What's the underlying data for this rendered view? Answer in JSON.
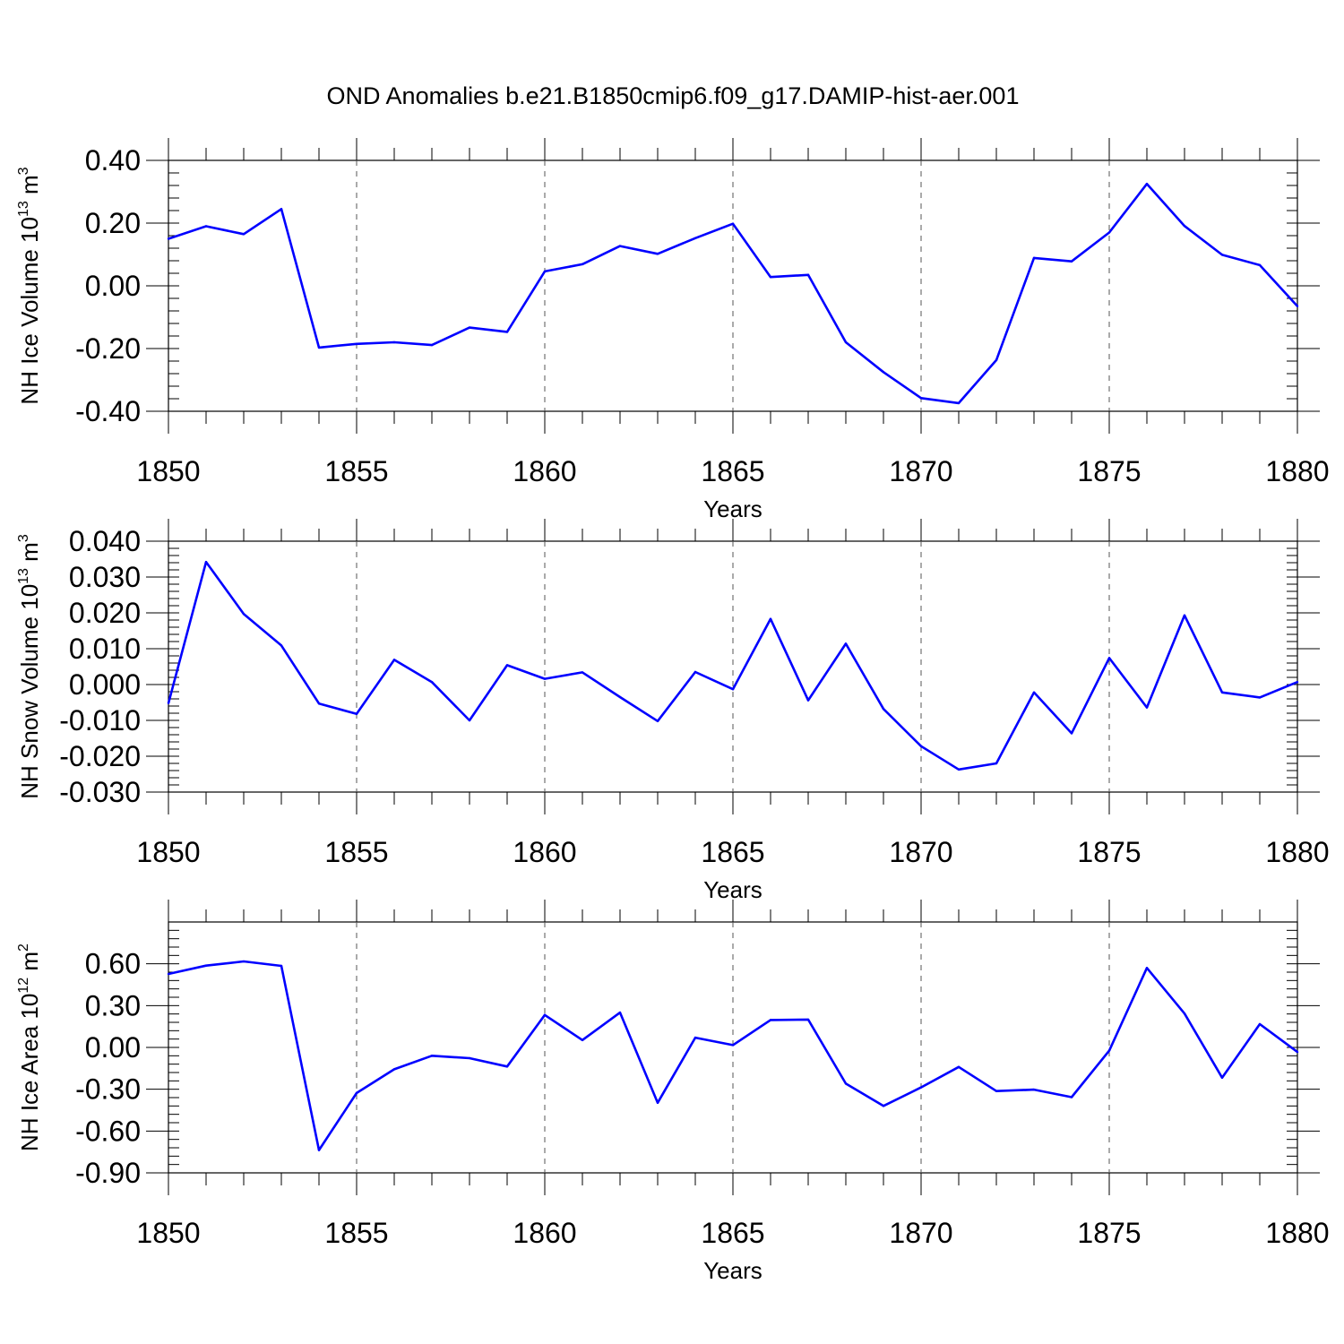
{
  "title": "OND Anomalies b.e21.B1850cmip6.f09_g17.DAMIP-hist-aer.001",
  "chart_data": [
    {
      "type": "line",
      "ylabel": "NH Ice Volume 10",
      "ylabel_sup": "13",
      "ylabel_unit": " m",
      "ylabel_unit_sup": "3",
      "xlabel": "Years",
      "xlim": [
        1850,
        1880
      ],
      "ylim": [
        -0.4,
        0.4
      ],
      "yticks": [
        0.4,
        0.2,
        0.0,
        -0.2,
        -0.4
      ],
      "ytick_labels": [
        "0.40",
        "0.20",
        "0.00",
        "-0.20",
        "-0.40"
      ],
      "xticks": [
        1850,
        1855,
        1860,
        1865,
        1870,
        1875,
        1880
      ],
      "xtick_labels": [
        "1850",
        "1855",
        "1860",
        "1865",
        "1870",
        "1875",
        "1880"
      ],
      "line_color": "#0000ff",
      "x": [
        1850,
        1851,
        1852,
        1853,
        1854,
        1855,
        1856,
        1857,
        1858,
        1859,
        1860,
        1861,
        1862,
        1863,
        1864,
        1865,
        1866,
        1867,
        1868,
        1869,
        1870,
        1871,
        1872,
        1873,
        1874,
        1875,
        1876,
        1877,
        1878,
        1879,
        1880
      ],
      "values": [
        0.15,
        0.19,
        0.165,
        0.245,
        -0.197,
        -0.185,
        -0.18,
        -0.189,
        -0.133,
        -0.147,
        0.046,
        0.069,
        0.127,
        0.102,
        0.152,
        0.198,
        0.028,
        0.035,
        -0.18,
        -0.275,
        -0.358,
        -0.374,
        -0.237,
        0.089,
        0.078,
        0.17,
        0.325,
        0.191,
        0.099,
        0.066,
        -0.065
      ]
    },
    {
      "type": "line",
      "ylabel": "NH Snow Volume 10",
      "ylabel_sup": "13",
      "ylabel_unit": " m",
      "ylabel_unit_sup": "3",
      "xlabel": "Years",
      "xlim": [
        1850,
        1880
      ],
      "ylim": [
        -0.03,
        0.04
      ],
      "yticks": [
        0.04,
        0.03,
        0.02,
        0.01,
        0.0,
        -0.01,
        -0.02,
        -0.03
      ],
      "ytick_labels": [
        "0.040",
        "0.030",
        "0.020",
        "0.010",
        "0.000",
        "-0.010",
        "-0.020",
        "-0.030"
      ],
      "xticks": [
        1850,
        1855,
        1860,
        1865,
        1870,
        1875,
        1880
      ],
      "xtick_labels": [
        "1850",
        "1855",
        "1860",
        "1865",
        "1870",
        "1875",
        "1880"
      ],
      "line_color": "#0000ff",
      "x": [
        1850,
        1851,
        1852,
        1853,
        1854,
        1855,
        1856,
        1857,
        1858,
        1859,
        1860,
        1861,
        1862,
        1863,
        1864,
        1865,
        1866,
        1867,
        1868,
        1869,
        1870,
        1871,
        1872,
        1873,
        1874,
        1875,
        1876,
        1877,
        1878,
        1879,
        1880
      ],
      "values": [
        -0.0052,
        0.0342,
        0.0197,
        0.0109,
        -0.0053,
        -0.0082,
        0.0069,
        0.0007,
        -0.01,
        0.0054,
        0.0016,
        0.0034,
        -0.0035,
        -0.0102,
        0.0035,
        -0.0013,
        0.0183,
        -0.0044,
        0.0114,
        -0.0068,
        -0.0172,
        -0.0237,
        -0.022,
        -0.0022,
        -0.0136,
        0.0074,
        -0.0064,
        0.0193,
        -0.0022,
        -0.0036,
        0.0007
      ]
    },
    {
      "type": "line",
      "ylabel": "NH Ice Area 10",
      "ylabel_sup": "12",
      "ylabel_unit": " m",
      "ylabel_unit_sup": "2",
      "xlabel": "Years",
      "xlim": [
        1850,
        1880
      ],
      "ylim": [
        -0.9,
        0.9
      ],
      "yticks": [
        0.6,
        0.3,
        0.0,
        -0.3,
        -0.6,
        -0.9
      ],
      "ytick_labels": [
        "0.60",
        "0.30",
        "0.00",
        "-0.30",
        "-0.60",
        "-0.90"
      ],
      "xticks": [
        1850,
        1855,
        1860,
        1865,
        1870,
        1875,
        1880
      ],
      "xtick_labels": [
        "1850",
        "1855",
        "1860",
        "1865",
        "1870",
        "1875",
        "1880"
      ],
      "line_color": "#0000ff",
      "x": [
        1850,
        1851,
        1852,
        1853,
        1854,
        1855,
        1856,
        1857,
        1858,
        1859,
        1860,
        1861,
        1862,
        1863,
        1864,
        1865,
        1866,
        1867,
        1868,
        1869,
        1870,
        1871,
        1872,
        1873,
        1874,
        1875,
        1876,
        1877,
        1878,
        1879,
        1880
      ],
      "values": [
        0.527,
        0.587,
        0.617,
        0.585,
        -0.737,
        -0.327,
        -0.157,
        -0.06,
        -0.077,
        -0.137,
        0.233,
        0.053,
        0.25,
        -0.397,
        0.07,
        0.017,
        0.197,
        0.2,
        -0.26,
        -0.42,
        -0.287,
        -0.14,
        -0.313,
        -0.303,
        -0.357,
        -0.023,
        0.57,
        0.243,
        -0.217,
        0.167,
        -0.033
      ]
    }
  ]
}
